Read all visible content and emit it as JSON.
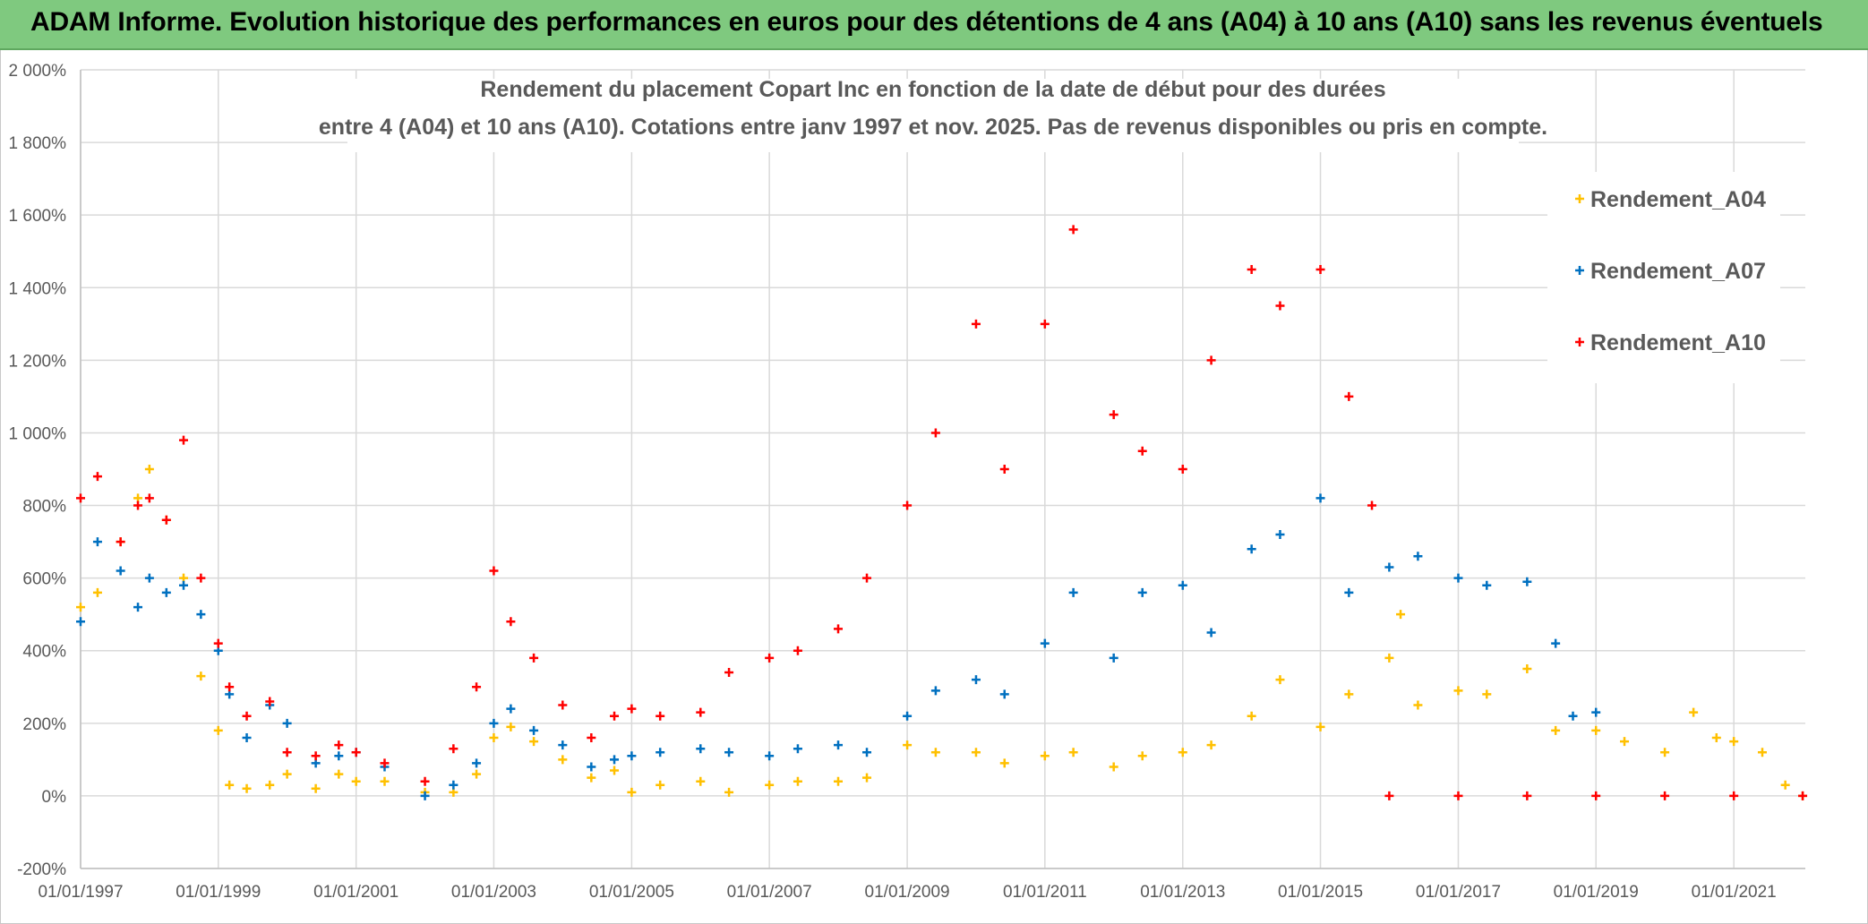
{
  "banner": {
    "title": "ADAM Informe. Evolution historique des performances en euros pour des détentions de 4 ans (A04) à 10 ans (A10) sans les revenus éventuels",
    "color": "#7fc97f"
  },
  "chart_data": {
    "type": "scatter",
    "title_line1": "Rendement du placement Copart Inc en fonction de la date de début pour des durées",
    "title_line2": "entre 4 (A04) et 10 ans (A10). Cotations entre janv 1997 et nov. 2025. Pas de revenus disponibles ou pris en compte.",
    "xlabel": "",
    "ylabel": "",
    "xlim": [
      "1997-01-01",
      "2022-01-15"
    ],
    "ylim": [
      -200,
      2000
    ],
    "y_ticks": [
      -200,
      0,
      200,
      400,
      600,
      800,
      1000,
      1200,
      1400,
      1600,
      1800,
      2000
    ],
    "y_tick_labels": [
      "-200%",
      "0%",
      "200%",
      "400%",
      "600%",
      "800%",
      "1 000%",
      "1 200%",
      "1 400%",
      "1 600%",
      "1 800%",
      "2 000%"
    ],
    "x_ticks": [
      "1997-01-01",
      "1999-01-01",
      "2001-01-01",
      "2003-01-01",
      "2005-01-01",
      "2007-01-01",
      "2009-01-01",
      "2011-01-01",
      "2013-01-01",
      "2015-01-01",
      "2017-01-01",
      "2019-01-01",
      "2021-01-01"
    ],
    "x_tick_labels": [
      "01/01/1997",
      "01/01/1999",
      "01/01/2001",
      "01/01/2003",
      "01/01/2005",
      "01/01/2007",
      "01/01/2009",
      "01/01/2011",
      "01/01/2013",
      "01/01/2015",
      "01/01/2017",
      "01/01/2019",
      "01/01/2021"
    ],
    "grid": true,
    "legend_position": "right",
    "marker": "+",
    "series": [
      {
        "name": "Rendement_A04",
        "color": "#ffc000",
        "points": [
          [
            "1997-01-01",
            520
          ],
          [
            "1997-04-01",
            560
          ],
          [
            "1997-08-01",
            700
          ],
          [
            "1997-11-01",
            820
          ],
          [
            "1998-01-01",
            900
          ],
          [
            "1998-04-01",
            760
          ],
          [
            "1998-07-01",
            600
          ],
          [
            "1998-10-01",
            330
          ],
          [
            "1999-01-01",
            180
          ],
          [
            "1999-03-01",
            30
          ],
          [
            "1999-06-01",
            20
          ],
          [
            "1999-10-01",
            30
          ],
          [
            "2000-01-01",
            60
          ],
          [
            "2000-06-01",
            20
          ],
          [
            "2000-10-01",
            60
          ],
          [
            "2001-01-01",
            40
          ],
          [
            "2001-06-01",
            40
          ],
          [
            "2002-01-01",
            10
          ],
          [
            "2002-06-01",
            10
          ],
          [
            "2002-10-01",
            60
          ],
          [
            "2003-01-01",
            160
          ],
          [
            "2003-04-01",
            190
          ],
          [
            "2003-08-01",
            150
          ],
          [
            "2004-01-01",
            100
          ],
          [
            "2004-06-01",
            50
          ],
          [
            "2004-10-01",
            70
          ],
          [
            "2005-01-01",
            10
          ],
          [
            "2005-06-01",
            30
          ],
          [
            "2006-01-01",
            40
          ],
          [
            "2006-06-01",
            10
          ],
          [
            "2007-01-01",
            30
          ],
          [
            "2007-06-01",
            40
          ],
          [
            "2008-01-01",
            40
          ],
          [
            "2008-06-01",
            50
          ],
          [
            "2009-01-01",
            140
          ],
          [
            "2009-06-01",
            120
          ],
          [
            "2010-01-01",
            120
          ],
          [
            "2010-06-01",
            90
          ],
          [
            "2011-01-01",
            110
          ],
          [
            "2011-06-01",
            120
          ],
          [
            "2012-01-01",
            80
          ],
          [
            "2012-06-01",
            110
          ],
          [
            "2013-01-01",
            120
          ],
          [
            "2013-06-01",
            140
          ],
          [
            "2014-01-01",
            220
          ],
          [
            "2014-06-01",
            320
          ],
          [
            "2015-01-01",
            190
          ],
          [
            "2015-06-01",
            280
          ],
          [
            "2016-01-01",
            380
          ],
          [
            "2016-03-01",
            500
          ],
          [
            "2016-06-01",
            250
          ],
          [
            "2017-01-01",
            290
          ],
          [
            "2017-06-01",
            280
          ],
          [
            "2018-01-01",
            350
          ],
          [
            "2018-06-01",
            180
          ],
          [
            "2019-01-01",
            180
          ],
          [
            "2019-06-01",
            150
          ],
          [
            "2020-01-01",
            120
          ],
          [
            "2020-06-01",
            230
          ],
          [
            "2020-10-01",
            160
          ],
          [
            "2021-01-01",
            150
          ],
          [
            "2021-06-01",
            120
          ],
          [
            "2021-10-01",
            30
          ],
          [
            "2022-01-01",
            0
          ]
        ]
      },
      {
        "name": "Rendement_A07",
        "color": "#0070c0",
        "points": [
          [
            "1997-01-01",
            480
          ],
          [
            "1997-04-01",
            700
          ],
          [
            "1997-08-01",
            620
          ],
          [
            "1997-11-01",
            520
          ],
          [
            "1998-01-01",
            600
          ],
          [
            "1998-04-01",
            560
          ],
          [
            "1998-07-01",
            580
          ],
          [
            "1998-10-01",
            500
          ],
          [
            "1999-01-01",
            400
          ],
          [
            "1999-03-01",
            280
          ],
          [
            "1999-06-01",
            160
          ],
          [
            "1999-10-01",
            250
          ],
          [
            "2000-01-01",
            200
          ],
          [
            "2000-06-01",
            90
          ],
          [
            "2000-10-01",
            110
          ],
          [
            "2001-01-01",
            120
          ],
          [
            "2001-06-01",
            80
          ],
          [
            "2002-01-01",
            0
          ],
          [
            "2002-06-01",
            30
          ],
          [
            "2002-10-01",
            90
          ],
          [
            "2003-01-01",
            200
          ],
          [
            "2003-04-01",
            240
          ],
          [
            "2003-08-01",
            180
          ],
          [
            "2004-01-01",
            140
          ],
          [
            "2004-06-01",
            80
          ],
          [
            "2004-10-01",
            100
          ],
          [
            "2005-01-01",
            110
          ],
          [
            "2005-06-01",
            120
          ],
          [
            "2006-01-01",
            130
          ],
          [
            "2006-06-01",
            120
          ],
          [
            "2007-01-01",
            110
          ],
          [
            "2007-06-01",
            130
          ],
          [
            "2008-01-01",
            140
          ],
          [
            "2008-06-01",
            120
          ],
          [
            "2009-01-01",
            220
          ],
          [
            "2009-06-01",
            290
          ],
          [
            "2010-01-01",
            320
          ],
          [
            "2010-06-01",
            280
          ],
          [
            "2011-01-01",
            420
          ],
          [
            "2011-06-01",
            560
          ],
          [
            "2012-01-01",
            380
          ],
          [
            "2012-06-01",
            560
          ],
          [
            "2013-01-01",
            580
          ],
          [
            "2013-06-01",
            450
          ],
          [
            "2014-01-01",
            680
          ],
          [
            "2014-06-01",
            720
          ],
          [
            "2015-01-01",
            820
          ],
          [
            "2015-06-01",
            560
          ],
          [
            "2016-01-01",
            630
          ],
          [
            "2016-06-01",
            660
          ],
          [
            "2017-01-01",
            600
          ],
          [
            "2017-06-01",
            580
          ],
          [
            "2018-01-01",
            590
          ],
          [
            "2018-06-01",
            420
          ],
          [
            "2018-09-01",
            220
          ],
          [
            "2019-01-01",
            230
          ]
        ]
      },
      {
        "name": "Rendement_A10",
        "color": "#ff0000",
        "points": [
          [
            "1997-01-01",
            820
          ],
          [
            "1997-04-01",
            880
          ],
          [
            "1997-08-01",
            700
          ],
          [
            "1997-11-01",
            800
          ],
          [
            "1998-01-01",
            820
          ],
          [
            "1998-04-01",
            760
          ],
          [
            "1998-07-01",
            980
          ],
          [
            "1998-10-01",
            600
          ],
          [
            "1999-01-01",
            420
          ],
          [
            "1999-03-01",
            300
          ],
          [
            "1999-06-01",
            220
          ],
          [
            "1999-10-01",
            260
          ],
          [
            "2000-01-01",
            120
          ],
          [
            "2000-06-01",
            110
          ],
          [
            "2000-10-01",
            140
          ],
          [
            "2001-01-01",
            120
          ],
          [
            "2001-06-01",
            90
          ],
          [
            "2002-01-01",
            40
          ],
          [
            "2002-06-01",
            130
          ],
          [
            "2002-10-01",
            300
          ],
          [
            "2003-01-01",
            620
          ],
          [
            "2003-04-01",
            480
          ],
          [
            "2003-08-01",
            380
          ],
          [
            "2004-01-01",
            250
          ],
          [
            "2004-06-01",
            160
          ],
          [
            "2004-10-01",
            220
          ],
          [
            "2005-01-01",
            240
          ],
          [
            "2005-06-01",
            220
          ],
          [
            "2006-01-01",
            230
          ],
          [
            "2006-06-01",
            340
          ],
          [
            "2007-01-01",
            380
          ],
          [
            "2007-06-01",
            400
          ],
          [
            "2008-01-01",
            460
          ],
          [
            "2008-06-01",
            600
          ],
          [
            "2009-01-01",
            800
          ],
          [
            "2009-06-01",
            1000
          ],
          [
            "2010-01-01",
            1300
          ],
          [
            "2010-06-01",
            900
          ],
          [
            "2011-01-01",
            1300
          ],
          [
            "2011-06-01",
            1560
          ],
          [
            "2012-01-01",
            1050
          ],
          [
            "2012-06-01",
            950
          ],
          [
            "2013-01-01",
            900
          ],
          [
            "2013-06-01",
            1200
          ],
          [
            "2014-01-01",
            1450
          ],
          [
            "2014-06-01",
            1350
          ],
          [
            "2015-01-01",
            1450
          ],
          [
            "2015-06-01",
            1100
          ],
          [
            "2015-10-01",
            800
          ],
          [
            "2016-01-01",
            0
          ],
          [
            "2017-01-01",
            0
          ],
          [
            "2018-01-01",
            0
          ],
          [
            "2019-01-01",
            0
          ],
          [
            "2020-01-01",
            0
          ],
          [
            "2021-01-01",
            0
          ],
          [
            "2022-01-01",
            0
          ]
        ]
      }
    ]
  }
}
